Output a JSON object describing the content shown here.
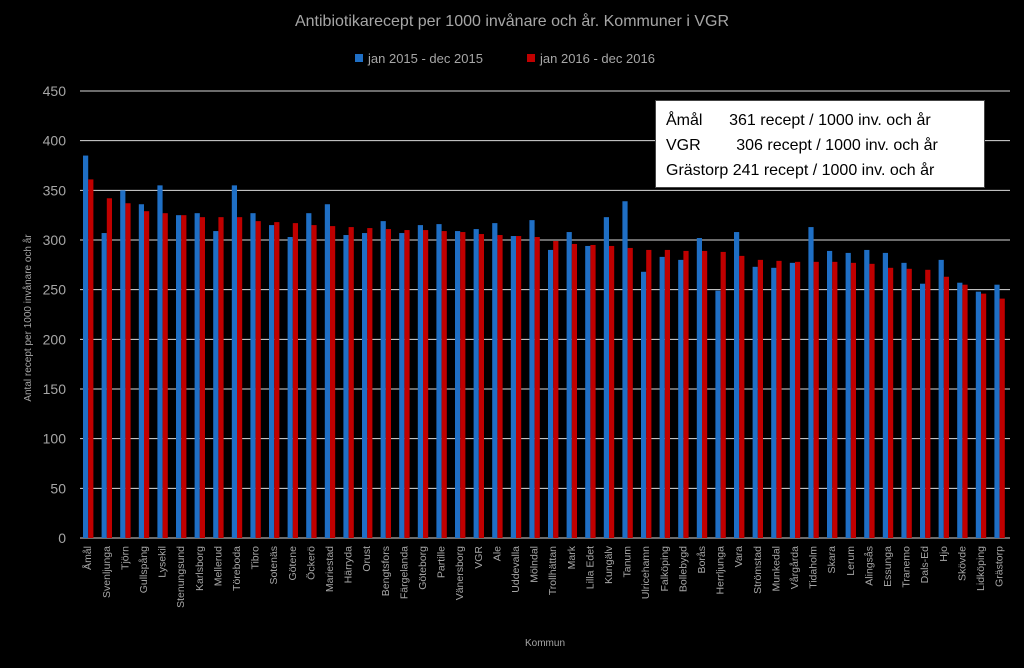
{
  "chart_data": {
    "type": "bar",
    "title": "Antibiotikarecept per 1000 invånare och år. Kommuner  i VGR",
    "xlabel": "Kommun",
    "ylabel": "Antal recept per 1000 invånare och år",
    "ylim": [
      0,
      450
    ],
    "yticks": [
      0,
      50,
      100,
      150,
      200,
      250,
      300,
      350,
      400,
      450
    ],
    "grid": true,
    "legend_position": "top",
    "categories": [
      "Åmål",
      "Svenljunga",
      "Tjörn",
      "Gullspång",
      "Lysekil",
      "Stenungsund",
      "Karlsborg",
      "Mellerud",
      "Töreboda",
      "Tibro",
      "Sotenäs",
      "Götene",
      "Öckerö",
      "Mariestad",
      "Härryda",
      "Orust",
      "Bengtsfors",
      "Färgelanda",
      "Göteborg",
      "Partille",
      "Vänersborg",
      "VGR",
      "Ale",
      "Uddevalla",
      "Mölndal",
      "Trollhättan",
      "Mark",
      "Lilla Edet",
      "Kungälv",
      "Tanum",
      "Ulricehamn",
      "Falköping",
      "Bollebygd",
      "Borås",
      "Herrljunga",
      "Vara",
      "Strömstad",
      "Munkedal",
      "Vårgårda",
      "Tidaholm",
      "Skara",
      "Lerum",
      "Alingsås",
      "Essunga",
      "Tranemo",
      "Dals-Ed",
      "Hjo",
      "Skövde",
      "Lidköping",
      "Grästorp"
    ],
    "series": [
      {
        "name": "jan 2015 - dec 2015",
        "color": "#1F6FC5",
        "values": [
          385,
          307,
          350,
          336,
          355,
          325,
          327,
          309,
          355,
          327,
          315,
          303,
          327,
          336,
          305,
          307,
          319,
          307,
          315,
          316,
          309,
          311,
          317,
          304,
          320,
          290,
          308,
          294,
          323,
          339,
          268,
          283,
          280,
          302,
          249,
          308,
          273,
          272,
          277,
          313,
          289,
          287,
          290,
          287,
          277,
          256,
          280,
          257,
          248,
          255
        ]
      },
      {
        "name": "jan 2016 - dec 2016",
        "color": "#C00000",
        "values": [
          361,
          342,
          337,
          329,
          327,
          325,
          323,
          323,
          323,
          319,
          318,
          317,
          315,
          314,
          313,
          312,
          311,
          310,
          310,
          309,
          308,
          306,
          305,
          304,
          303,
          299,
          296,
          295,
          294,
          292,
          290,
          290,
          289,
          289,
          288,
          284,
          280,
          279,
          278,
          278,
          278,
          277,
          276,
          272,
          271,
          270,
          263,
          255,
          246,
          241
        ]
      }
    ],
    "annotations": [
      "Åmål      361 recept / 1000 inv. och år",
      "VGR        306 recept / 1000 inv. och år",
      "Grästorp 241 recept / 1000 inv. och år"
    ]
  },
  "colors": {
    "background": "#000000",
    "text": "#a6a6a6",
    "grid": "#d9d9d9",
    "title": "#a6a6a6"
  }
}
